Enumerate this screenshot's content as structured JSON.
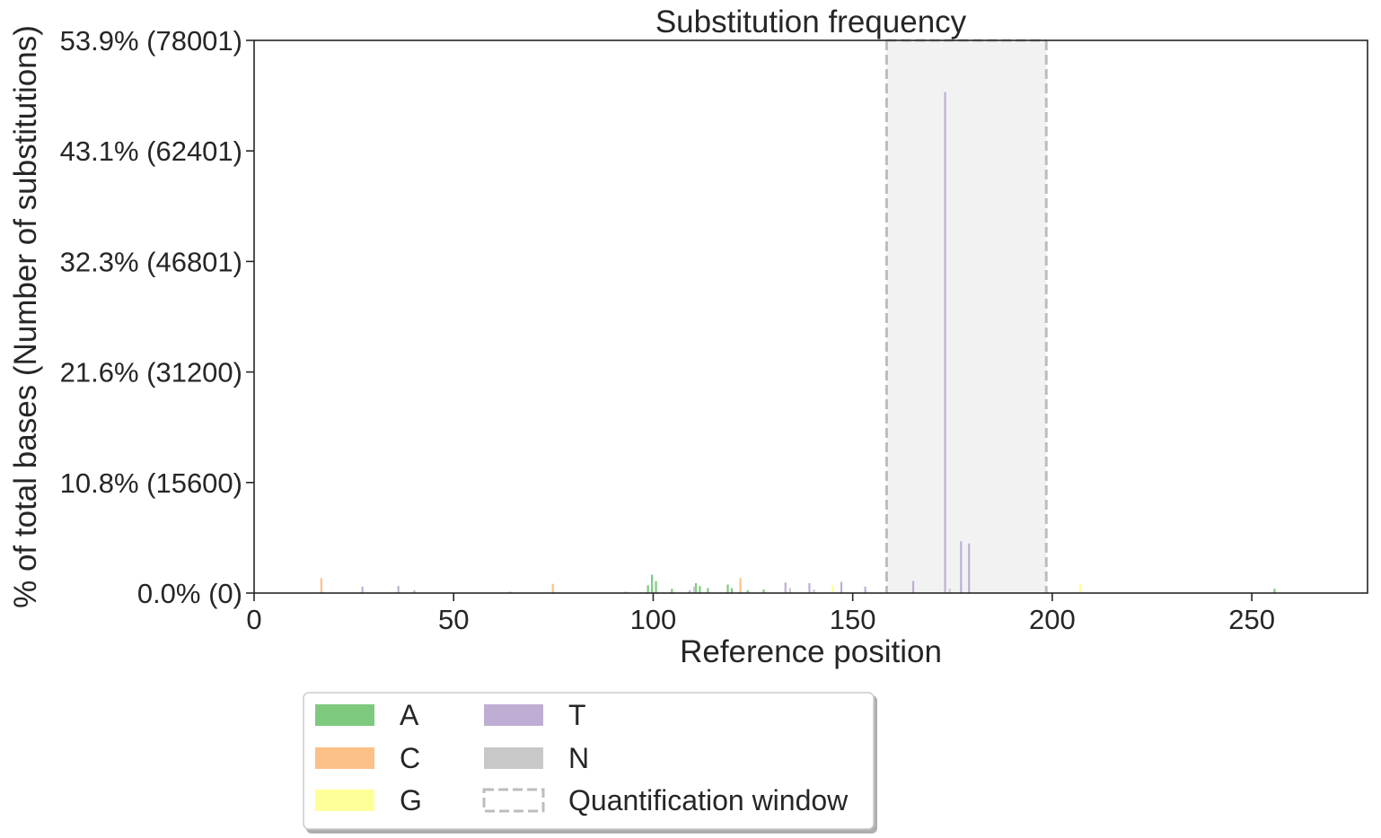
{
  "chart_data": {
    "type": "bar",
    "title": "Substitution frequency",
    "xlabel": "Reference position",
    "ylabel": "% of total bases (Number of substitutions)",
    "xlim": [
      0,
      279
    ],
    "ylim": [
      0,
      78001
    ],
    "x_ticks": [
      0,
      50,
      100,
      150,
      200,
      250
    ],
    "x_tick_labels": [
      "0",
      "50",
      "100",
      "150",
      "200",
      "250"
    ],
    "y_ticks": [
      0,
      15600,
      31200,
      46801,
      62401,
      78001
    ],
    "y_tick_labels": [
      "0.0% (0)",
      "10.8% (15600)",
      "21.6% (31200)",
      "32.3% (46801)",
      "43.1% (62401)",
      "53.9% (78001)"
    ],
    "grid": false,
    "legend_position": "below",
    "quantification_window": {
      "start": 158.5,
      "end": 198.5,
      "label": "Quantification window"
    },
    "colors": {
      "A": "#7fc97f",
      "C": "#fdc086",
      "G": "#ffff99",
      "T": "#beaed4",
      "N": "#c8c8c8",
      "window_fill": "#f2f2f2",
      "window_edge": "#bdbdbd",
      "axis": "#262626"
    },
    "series": [
      {
        "name": "A",
        "points": [
          [
            100,
            2600
          ],
          [
            101,
            1700
          ],
          [
            99,
            1100
          ],
          [
            105,
            600
          ],
          [
            111,
            1400
          ],
          [
            112,
            1000
          ],
          [
            114,
            700
          ],
          [
            119,
            1200
          ],
          [
            120,
            700
          ],
          [
            124,
            400
          ],
          [
            128,
            500
          ],
          [
            256,
            600
          ]
        ]
      },
      {
        "name": "C",
        "points": [
          [
            17,
            2100
          ],
          [
            75,
            1300
          ],
          [
            122,
            2100
          ]
        ]
      },
      {
        "name": "G",
        "points": [
          [
            145,
            1100
          ],
          [
            207,
            1300
          ]
        ]
      },
      {
        "name": "T",
        "points": [
          [
            27,
            900
          ],
          [
            36,
            1000
          ],
          [
            40,
            400
          ],
          [
            64,
            200
          ],
          [
            93,
            200
          ],
          [
            109,
            400
          ],
          [
            133,
            1500
          ],
          [
            139,
            1400
          ],
          [
            147,
            1600
          ],
          [
            153,
            900
          ],
          [
            165,
            1700
          ],
          [
            173,
            70700
          ],
          [
            177,
            7300
          ],
          [
            179,
            7000
          ]
        ]
      },
      {
        "name": "N",
        "points": [
          [
            110,
            900
          ],
          [
            134,
            700
          ],
          [
            140,
            500
          ],
          [
            174,
            600
          ]
        ]
      }
    ],
    "legend": [
      {
        "name": "A",
        "kind": "patch",
        "color": "#7fc97f"
      },
      {
        "name": "C",
        "kind": "patch",
        "color": "#fdc086"
      },
      {
        "name": "G",
        "kind": "patch",
        "color": "#ffff99"
      },
      {
        "name": "T",
        "kind": "patch",
        "color": "#beaed4"
      },
      {
        "name": "N",
        "kind": "patch",
        "color": "#c8c8c8"
      },
      {
        "name": "Quantification window",
        "kind": "dashed"
      }
    ]
  }
}
